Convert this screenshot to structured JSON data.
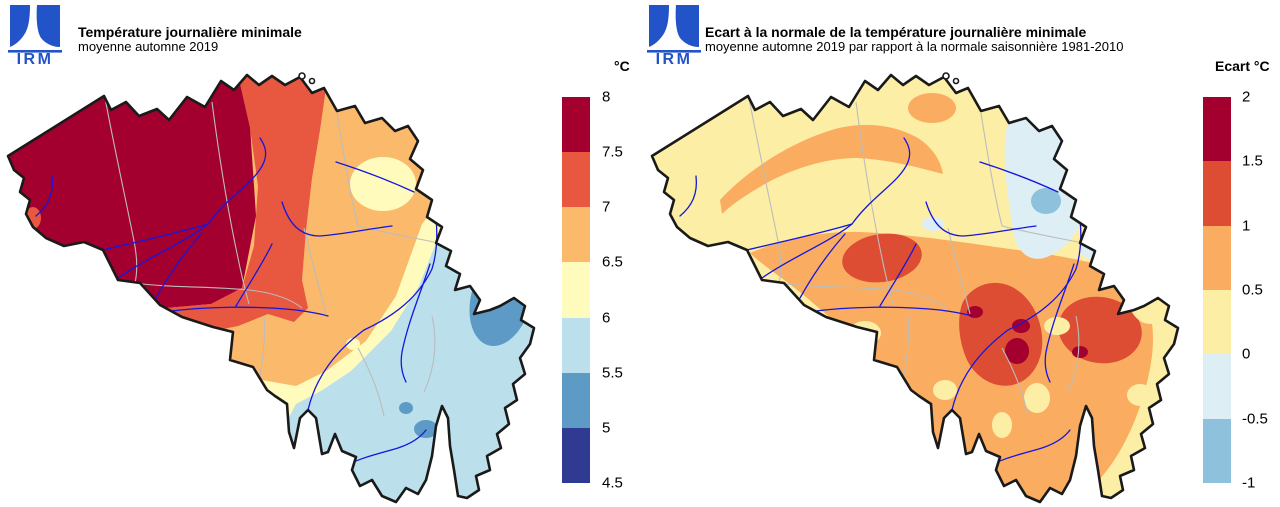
{
  "brand": {
    "logo_text": "IRM",
    "logo_color": "#2353c8"
  },
  "map_style": {
    "country_border_color": "#1a1a1a",
    "province_border_color": "#bcbcbc",
    "river_color": "#1616dd",
    "background": "#ffffff"
  },
  "left_panel": {
    "title": "Température journalière minimale",
    "subtitle": "moyenne automne 2019",
    "unit_label": "°C",
    "colorbar_labels": [
      "8",
      "7.5",
      "7",
      "6.5",
      "6",
      "5.5",
      "5",
      "4.5"
    ]
  },
  "right_panel": {
    "title": "Ecart à la normale de la température journalière minimale",
    "subtitle": "moyenne automne 2019 par rapport à la normale saisonnière 1981-2010",
    "unit_label": "Ecart °C",
    "colorbar_labels": [
      "2",
      "1.5",
      "1",
      "0.5",
      "0",
      "-0.5",
      "-1"
    ]
  },
  "chart_data": [
    {
      "type": "heatmap",
      "subtype": "choropleth-map",
      "region": "Belgique",
      "title": "Température journalière minimale",
      "subtitle": "moyenne automne 2019",
      "unit": "°C",
      "legend_position": "right",
      "legend_ticks": [
        8,
        7.5,
        7,
        6.5,
        6,
        5.5,
        5,
        4.5
      ],
      "bins": [
        {
          "range": "7.5–8 °C",
          "color": "#a3002f",
          "areas": "ouest et centre du pays (Flandre occidentale et orientale, ouest du Hainaut, région bruxelloise)"
        },
        {
          "range": "7–7.5 °C",
          "color": "#e8573f",
          "areas": "bande Anvers–Brabant et vallée de la Sambre, petite tache côtière"
        },
        {
          "range": "6.5–7 °C",
          "color": "#fbba6b",
          "areas": "Campine, Hesbaye, centre-est et Entre-Sambre-et-Meuse"
        },
        {
          "range": "6–6.5 °C",
          "color": "#fefbbd",
          "areas": "tache en Campine limbourgeoise, bande pré-ardennaise, extrême sud-ouest"
        },
        {
          "range": "5.5–6 °C",
          "color": "#bbdfeb",
          "areas": "Ardenne et tout le sud-est"
        },
        {
          "range": "5–5.5 °C",
          "color": "#5e9ac6",
          "areas": "Hautes Fagnes et points hauts de l'Ardenne"
        },
        {
          "range": "4.5–5 °C",
          "color": "#2f3a92",
          "areas": "aucune zone visible (légende seulement)"
        }
      ],
      "overlays": [
        "frontière nationale",
        "limites provinciales",
        "rivières"
      ]
    },
    {
      "type": "heatmap",
      "subtype": "choropleth-map",
      "region": "Belgique",
      "title": "Ecart à la normale de la température journalière minimale",
      "subtitle": "moyenne automne 2019 par rapport à la normale saisonnière 1981-2010",
      "unit": "°C",
      "legend_position": "right",
      "legend_ticks": [
        2,
        1.5,
        1,
        0.5,
        0,
        -0.5,
        -1
      ],
      "bins": [
        {
          "range": "1.5–2 °C",
          "color": "#a3002f",
          "areas": "petits noyaux sur le Condroz et la Famenne"
        },
        {
          "range": "1–1.5 °C",
          "color": "#dc4d33",
          "areas": "sud de Charleroi, Condroz–Famenne, région liégeoise"
        },
        {
          "range": "0.5–1 °C",
          "color": "#faad60",
          "areas": "arc du centre du pays et majeure partie du sud (Ardenne)"
        },
        {
          "range": "0–0.5 °C",
          "color": "#fdeea6",
          "areas": "Flandre, nord du pays et poches du sud-est"
        },
        {
          "range": "-0.5–0 °C",
          "color": "#ddeef5",
          "areas": "Campine limbourgeoise et pays de Herve"
        },
        {
          "range": "-1–-0.5 °C",
          "color": "#8ec1dc",
          "areas": "noyau du Limbourg"
        }
      ],
      "overlays": [
        "frontière nationale",
        "limites provinciales",
        "rivières"
      ]
    }
  ]
}
